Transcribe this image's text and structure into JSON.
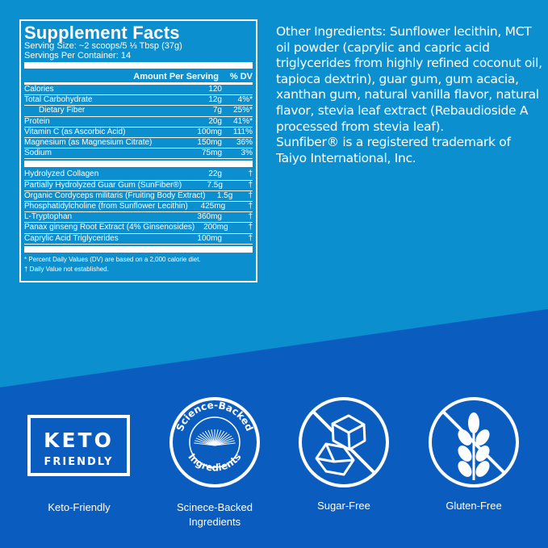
{
  "colors": {
    "top_bg": "#0b8fcf",
    "bottom_bg": "#0a5cbf",
    "text": "#ffffff"
  },
  "facts": {
    "title": "Supplement Facts",
    "serving_size": "Serving Size: ~2 scoops/5 ⅓ Tbsp (37g)",
    "servings_per_container": "Servings Per Container: 14",
    "header": {
      "amount": "Amount Per Serving",
      "dv": "% DV"
    },
    "nutrients": [
      {
        "name": "Calories",
        "amount": "120",
        "dv": ""
      },
      {
        "name": "Total Carbohydrate",
        "amount": "12g",
        "dv": "4%*"
      },
      {
        "name": "Dietary Fiber",
        "amount": "7g",
        "dv": "25%*"
      },
      {
        "name": "Protein",
        "amount": "20g",
        "dv": "41%*"
      },
      {
        "name": "Vitamin C (as Ascorbic Acid)",
        "amount": "100mg",
        "dv": "111%"
      },
      {
        "name": "Magnesium (as Magnesium Citrate)",
        "amount": "150mg",
        "dv": "36%"
      },
      {
        "name": "Sodium",
        "amount": "75mg",
        "dv": "3%"
      }
    ],
    "ingredients": [
      {
        "name": "Hydrolyzed Collagen",
        "amount": "22g",
        "dv": "†"
      },
      {
        "name": "Partially Hydrolyzed Guar Gum (SunFiber®)",
        "amount": "7.5g",
        "dv": "†"
      },
      {
        "name": "Organic Cordyceps militaris (Fruiting Body Extract)",
        "amount": "1.5g",
        "dv": "†"
      },
      {
        "name": "Phosphatidylcholine (from Sunflower Lecithin)",
        "amount": "425mg",
        "dv": "†"
      },
      {
        "name": "L-Tryptophan",
        "amount": "360mg",
        "dv": "†"
      },
      {
        "name": "Panax ginseng Root Extract (4% Ginsenosides)",
        "amount": "200mg",
        "dv": "†"
      },
      {
        "name": "Caprylic Acid Triglycerides",
        "amount": "100mg",
        "dv": "†"
      }
    ],
    "footnote1": "* Percent Daily Values (DV) are based on a 2,000 calorie diet.",
    "footnote2": "† Daily Value not established."
  },
  "other_ingredients": "Other Ingredients: Sunflower lecithin, MCT oil powder (caprylic and capric acid triglycerides from highly refined coconut oil, tapioca dextrin), guar gum, gum acacia, xanthan gum, natural vanilla flavor, natural flavor, stevia leaf extract (Rebaudioside A processed from stevia leaf).",
  "trademark": "Sunfiber® is a registered trademark of Taiyo International, Inc.",
  "badges": [
    {
      "icon": "keto-friendly-badge",
      "logo_text": [
        "KETO",
        "FRIENDLY"
      ],
      "caption": "Keto-Friendly"
    },
    {
      "icon": "science-backed-seal",
      "logo_text": [
        "Science-Backed",
        "Ingredients"
      ],
      "caption": "Scinece-Backed Ingredients"
    },
    {
      "icon": "sugar-free-icon",
      "caption": "Sugar-Free"
    },
    {
      "icon": "gluten-free-icon",
      "caption": "Gluten-Free"
    }
  ]
}
